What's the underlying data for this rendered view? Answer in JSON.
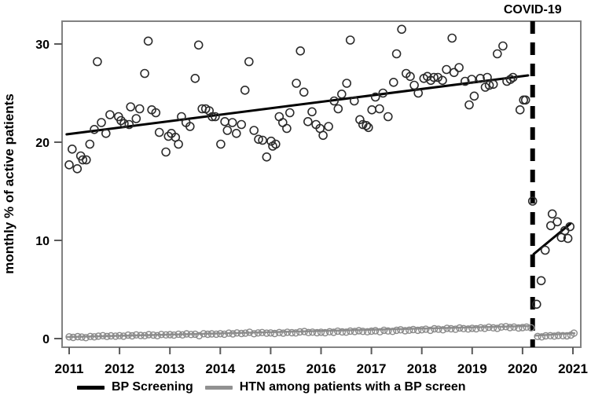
{
  "chart_data": {
    "type": "scatter",
    "title": "",
    "xlabel": "",
    "annotation": {
      "label": "COVID-19",
      "x": 2020.2
    },
    "axes": {
      "ylabel": "monthly % of active patients",
      "yticks": [
        0,
        10,
        20,
        30
      ],
      "xticks": [
        2011,
        2012,
        2013,
        2014,
        2015,
        2016,
        2017,
        2018,
        2019,
        2020,
        2021
      ],
      "xlim": [
        2010.87,
        2021.16
      ],
      "ylim": [
        -0.9,
        32.3
      ],
      "grid": false
    },
    "colors": {
      "bp": "#000000",
      "htn": "#919191",
      "border": "#818181",
      "tick": "#5a5a5a",
      "dashed_line": "#000000"
    },
    "legend": [
      {
        "label": "BP Screening",
        "color": "#000000"
      },
      {
        "label": "HTN among patients with a BP screen",
        "color": "#919191"
      }
    ],
    "series": [
      {
        "name": "BP Screening",
        "color": "#000000",
        "marker": {
          "radius": 5,
          "stroke_width": 1.6,
          "stroke": "#2b2b2b"
        },
        "trend_pre": {
          "x1": 2010.95,
          "y1": 20.8,
          "x2": 2020.11,
          "y2": 26.8
        },
        "trend_post": {
          "x1": 2020.22,
          "y1": 8.6,
          "x2": 2020.95,
          "y2": 11.7
        },
        "points_pre": [
          [
            2011.0,
            17.7
          ],
          [
            2011.06,
            19.3
          ],
          [
            2011.16,
            17.3
          ],
          [
            2011.23,
            18.6
          ],
          [
            2011.27,
            18.2
          ],
          [
            2011.34,
            18.2
          ],
          [
            2011.41,
            19.8
          ],
          [
            2011.5,
            21.3
          ],
          [
            2011.56,
            28.2
          ],
          [
            2011.64,
            22.0
          ],
          [
            2011.73,
            20.9
          ],
          [
            2011.81,
            22.8
          ],
          [
            2011.98,
            22.6
          ],
          [
            2012.03,
            22.2
          ],
          [
            2012.09,
            21.9
          ],
          [
            2012.19,
            21.8
          ],
          [
            2012.22,
            23.6
          ],
          [
            2012.33,
            22.4
          ],
          [
            2012.4,
            23.4
          ],
          [
            2012.5,
            27.0
          ],
          [
            2012.57,
            30.3
          ],
          [
            2012.64,
            23.3
          ],
          [
            2012.72,
            23.0
          ],
          [
            2012.79,
            21.0
          ],
          [
            2012.92,
            19.0
          ],
          [
            2012.97,
            20.6
          ],
          [
            2013.03,
            20.9
          ],
          [
            2013.11,
            20.5
          ],
          [
            2013.17,
            19.8
          ],
          [
            2013.23,
            22.6
          ],
          [
            2013.32,
            22.0
          ],
          [
            2013.4,
            21.6
          ],
          [
            2013.5,
            26.5
          ],
          [
            2013.57,
            29.9
          ],
          [
            2013.64,
            23.4
          ],
          [
            2013.71,
            23.4
          ],
          [
            2013.78,
            23.2
          ],
          [
            2013.84,
            22.6
          ],
          [
            2013.9,
            22.6
          ],
          [
            2014.01,
            19.8
          ],
          [
            2014.09,
            22.1
          ],
          [
            2014.14,
            21.2
          ],
          [
            2014.24,
            22.0
          ],
          [
            2014.32,
            20.9
          ],
          [
            2014.42,
            21.8
          ],
          [
            2014.49,
            25.3
          ],
          [
            2014.57,
            28.2
          ],
          [
            2014.67,
            21.2
          ],
          [
            2014.76,
            20.3
          ],
          [
            2014.84,
            20.2
          ],
          [
            2014.92,
            18.5
          ],
          [
            2015.01,
            20.1
          ],
          [
            2015.04,
            19.6
          ],
          [
            2015.1,
            19.8
          ],
          [
            2015.17,
            22.6
          ],
          [
            2015.24,
            22.0
          ],
          [
            2015.32,
            21.4
          ],
          [
            2015.38,
            23.0
          ],
          [
            2015.51,
            26.0
          ],
          [
            2015.59,
            29.3
          ],
          [
            2015.66,
            25.1
          ],
          [
            2015.74,
            22.1
          ],
          [
            2015.82,
            23.1
          ],
          [
            2015.9,
            21.8
          ],
          [
            2015.98,
            21.4
          ],
          [
            2016.04,
            20.7
          ],
          [
            2016.15,
            21.6
          ],
          [
            2016.26,
            24.2
          ],
          [
            2016.34,
            23.4
          ],
          [
            2016.41,
            24.9
          ],
          [
            2016.51,
            26.0
          ],
          [
            2016.58,
            30.4
          ],
          [
            2016.66,
            24.2
          ],
          [
            2016.77,
            22.3
          ],
          [
            2016.83,
            21.8
          ],
          [
            2016.9,
            21.7
          ],
          [
            2016.94,
            21.5
          ],
          [
            2017.01,
            23.3
          ],
          [
            2017.08,
            24.6
          ],
          [
            2017.16,
            23.4
          ],
          [
            2017.23,
            25.0
          ],
          [
            2017.33,
            22.6
          ],
          [
            2017.44,
            26.1
          ],
          [
            2017.5,
            29.0
          ],
          [
            2017.6,
            31.5
          ],
          [
            2017.69,
            27.0
          ],
          [
            2017.77,
            26.7
          ],
          [
            2017.85,
            25.8
          ],
          [
            2017.93,
            25.0
          ],
          [
            2018.04,
            26.5
          ],
          [
            2018.11,
            26.7
          ],
          [
            2018.18,
            26.3
          ],
          [
            2018.24,
            26.6
          ],
          [
            2018.32,
            26.6
          ],
          [
            2018.41,
            26.3
          ],
          [
            2018.49,
            27.4
          ],
          [
            2018.6,
            30.6
          ],
          [
            2018.64,
            27.1
          ],
          [
            2018.74,
            27.6
          ],
          [
            2018.86,
            26.2
          ],
          [
            2018.94,
            23.8
          ],
          [
            2018.99,
            26.4
          ],
          [
            2019.04,
            24.7
          ],
          [
            2019.16,
            26.5
          ],
          [
            2019.26,
            25.6
          ],
          [
            2019.3,
            26.6
          ],
          [
            2019.34,
            25.8
          ],
          [
            2019.42,
            25.9
          ],
          [
            2019.5,
            29.0
          ],
          [
            2019.61,
            29.8
          ],
          [
            2019.69,
            26.2
          ],
          [
            2019.76,
            26.4
          ],
          [
            2019.81,
            26.6
          ],
          [
            2019.95,
            23.3
          ],
          [
            2020.02,
            24.3
          ],
          [
            2020.06,
            24.3
          ]
        ],
        "points_post": [
          [
            2020.2,
            14.0
          ],
          [
            2020.28,
            3.5
          ],
          [
            2020.37,
            5.9
          ],
          [
            2020.45,
            9.0
          ],
          [
            2020.56,
            11.5
          ],
          [
            2020.59,
            12.7
          ],
          [
            2020.69,
            11.9
          ],
          [
            2020.77,
            10.3
          ],
          [
            2020.84,
            11.0
          ],
          [
            2020.9,
            10.2
          ],
          [
            2020.94,
            11.4
          ]
        ]
      },
      {
        "name": "HTN among patients with a BP screen",
        "color": "#919191",
        "marker": {
          "radius": 4,
          "stroke_width": 1.4,
          "stroke": "#8a8a8a"
        },
        "trend_pre": {
          "x1": 2010.95,
          "y1": 0.16,
          "x2": 2020.11,
          "y2": 1.28
        },
        "trend_post": {
          "x1": 2020.25,
          "y1": 0.3,
          "x2": 2021.03,
          "y2": 0.55
        },
        "points_pre": [
          [
            2011.0,
            0.18
          ],
          [
            2011.08,
            0.12
          ],
          [
            2011.17,
            0.2
          ],
          [
            2011.25,
            0.15
          ],
          [
            2011.33,
            0.1
          ],
          [
            2011.42,
            0.22
          ],
          [
            2011.5,
            0.18
          ],
          [
            2011.58,
            0.25
          ],
          [
            2011.67,
            0.3
          ],
          [
            2011.75,
            0.22
          ],
          [
            2011.83,
            0.28
          ],
          [
            2011.92,
            0.25
          ],
          [
            2012.0,
            0.3
          ],
          [
            2012.08,
            0.25
          ],
          [
            2012.17,
            0.35
          ],
          [
            2012.25,
            0.28
          ],
          [
            2012.33,
            0.38
          ],
          [
            2012.42,
            0.32
          ],
          [
            2012.5,
            0.3
          ],
          [
            2012.58,
            0.4
          ],
          [
            2012.67,
            0.35
          ],
          [
            2012.75,
            0.3
          ],
          [
            2012.83,
            0.42
          ],
          [
            2012.92,
            0.38
          ],
          [
            2013.0,
            0.4
          ],
          [
            2013.08,
            0.35
          ],
          [
            2013.17,
            0.45
          ],
          [
            2013.25,
            0.38
          ],
          [
            2013.33,
            0.48
          ],
          [
            2013.42,
            0.42
          ],
          [
            2013.5,
            0.45
          ],
          [
            2013.58,
            0.3
          ],
          [
            2013.67,
            0.5
          ],
          [
            2013.75,
            0.44
          ],
          [
            2013.83,
            0.48
          ],
          [
            2013.92,
            0.45
          ],
          [
            2014.0,
            0.5
          ],
          [
            2014.08,
            0.45
          ],
          [
            2014.17,
            0.55
          ],
          [
            2014.25,
            0.48
          ],
          [
            2014.33,
            0.58
          ],
          [
            2014.42,
            0.52
          ],
          [
            2014.5,
            0.55
          ],
          [
            2014.58,
            0.65
          ],
          [
            2014.67,
            0.5
          ],
          [
            2014.75,
            0.58
          ],
          [
            2014.83,
            0.62
          ],
          [
            2014.92,
            0.55
          ],
          [
            2015.0,
            0.58
          ],
          [
            2015.08,
            0.52
          ],
          [
            2015.17,
            0.62
          ],
          [
            2015.25,
            0.55
          ],
          [
            2015.33,
            0.65
          ],
          [
            2015.42,
            0.6
          ],
          [
            2015.5,
            0.58
          ],
          [
            2015.58,
            0.68
          ],
          [
            2015.67,
            0.72
          ],
          [
            2015.75,
            0.62
          ],
          [
            2015.83,
            0.66
          ],
          [
            2015.92,
            0.6
          ],
          [
            2016.0,
            0.65
          ],
          [
            2016.08,
            0.6
          ],
          [
            2016.17,
            0.7
          ],
          [
            2016.25,
            0.64
          ],
          [
            2016.33,
            0.75
          ],
          [
            2016.42,
            0.68
          ],
          [
            2016.5,
            0.66
          ],
          [
            2016.58,
            0.76
          ],
          [
            2016.67,
            0.72
          ],
          [
            2016.75,
            0.8
          ],
          [
            2016.83,
            0.74
          ],
          [
            2016.92,
            0.7
          ],
          [
            2017.0,
            0.75
          ],
          [
            2017.08,
            0.8
          ],
          [
            2017.17,
            0.7
          ],
          [
            2017.25,
            0.85
          ],
          [
            2017.33,
            0.78
          ],
          [
            2017.42,
            0.74
          ],
          [
            2017.5,
            0.85
          ],
          [
            2017.58,
            0.9
          ],
          [
            2017.67,
            0.8
          ],
          [
            2017.75,
            0.86
          ],
          [
            2017.83,
            0.92
          ],
          [
            2017.92,
            0.85
          ],
          [
            2018.0,
            0.9
          ],
          [
            2018.08,
            0.95
          ],
          [
            2018.17,
            0.85
          ],
          [
            2018.25,
            1.0
          ],
          [
            2018.33,
            0.95
          ],
          [
            2018.42,
            0.9
          ],
          [
            2018.5,
            1.05
          ],
          [
            2018.58,
            1.0
          ],
          [
            2018.67,
            0.95
          ],
          [
            2018.75,
            1.08
          ],
          [
            2018.83,
            1.02
          ],
          [
            2018.92,
            0.98
          ],
          [
            2019.0,
            1.05
          ],
          [
            2019.08,
            1.0
          ],
          [
            2019.17,
            1.1
          ],
          [
            2019.25,
            1.05
          ],
          [
            2019.33,
            1.15
          ],
          [
            2019.42,
            1.1
          ],
          [
            2019.5,
            1.05
          ],
          [
            2019.58,
            1.18
          ],
          [
            2019.67,
            1.22
          ],
          [
            2019.75,
            1.12
          ],
          [
            2019.83,
            1.18
          ],
          [
            2019.92,
            1.08
          ],
          [
            2020.0,
            1.12
          ],
          [
            2020.08,
            1.18
          ],
          [
            2020.17,
            1.1
          ]
        ],
        "points_post": [
          [
            2020.3,
            0.22
          ],
          [
            2020.38,
            0.18
          ],
          [
            2020.46,
            0.28
          ],
          [
            2020.55,
            0.3
          ],
          [
            2020.63,
            0.26
          ],
          [
            2020.71,
            0.32
          ],
          [
            2020.8,
            0.3
          ],
          [
            2020.88,
            0.28
          ],
          [
            2020.96,
            0.35
          ],
          [
            2021.02,
            0.55
          ]
        ]
      }
    ]
  }
}
